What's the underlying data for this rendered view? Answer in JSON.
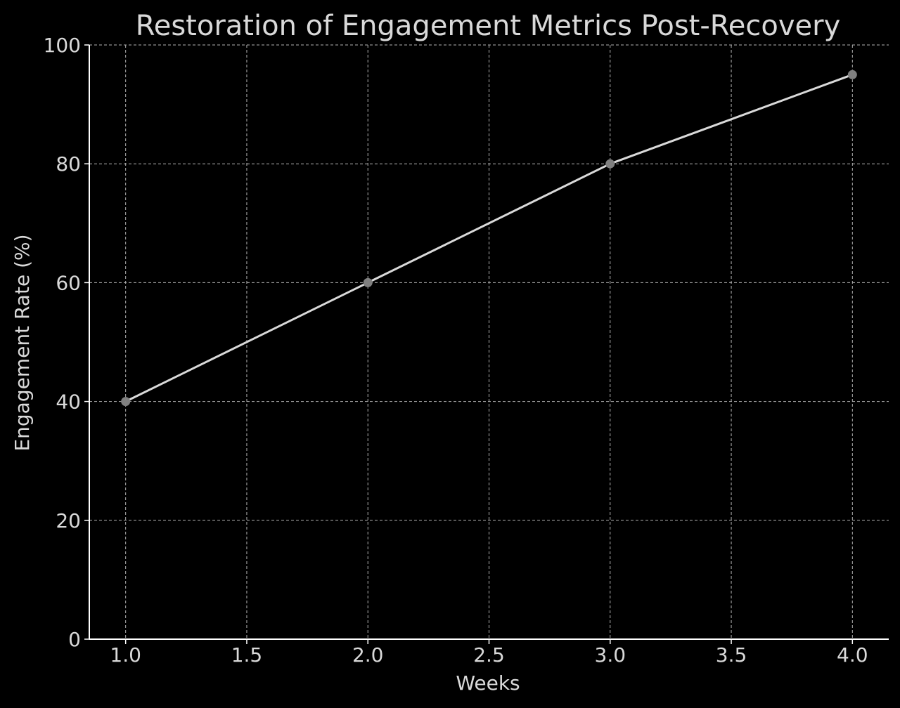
{
  "chart_data": {
    "type": "line",
    "title": "Restoration of Engagement Metrics Post-Recovery",
    "xlabel": "Weeks",
    "ylabel": "Engagement Rate (%)",
    "x": [
      1.0,
      2.0,
      3.0,
      4.0
    ],
    "series": [
      {
        "values": [
          40,
          60,
          80,
          95
        ]
      }
    ],
    "xlim": [
      0.85,
      4.15
    ],
    "ylim": [
      0,
      100
    ],
    "xticks": [
      1.0,
      1.5,
      2.0,
      2.5,
      3.0,
      3.5,
      4.0
    ],
    "xtick_labels": [
      "1.0",
      "1.5",
      "2.0",
      "2.5",
      "3.0",
      "3.5",
      "4.0"
    ],
    "yticks": [
      0,
      20,
      40,
      60,
      80,
      100
    ],
    "ytick_labels": [
      "0",
      "20",
      "40",
      "60",
      "80",
      "100"
    ],
    "grid": true,
    "legend": false,
    "colors": {
      "background": "#000000",
      "line": "#d9d9d9",
      "marker": "#808080",
      "grid": "#b3b3b3",
      "axis": "#ffffff",
      "text": "#d9d9d9"
    }
  }
}
